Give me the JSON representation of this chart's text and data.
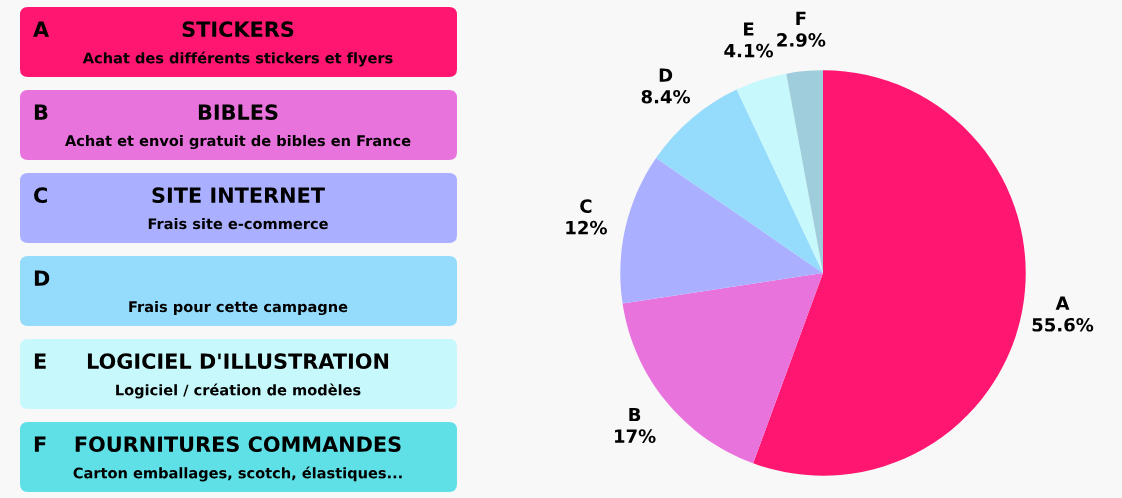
{
  "chart_data": [
    {
      "type": "other",
      "categories": [
        "A",
        "B",
        "C",
        "D",
        "E",
        "F"
      ],
      "annotations": [
        "STICKERS",
        "Achat des différents stickers et flyers",
        "BIBLES",
        "Achat et envoi gratuit de bibles en France",
        "SITE INTERNET",
        "Frais site e-commerce",
        null,
        "Frais pour cette campagne",
        "LOGICIEL D'ILLUSTRATION",
        "Logiciel / création de modèles",
        "FOURNITURES COMMANDES",
        "Carton emballages, scotch, élastiques..."
      ],
      "colors": [
        "#ff1670",
        "#e873dc",
        "#aab0ff",
        "#94dbfc",
        "#c7f8fb",
        "#5ee0e6"
      ]
    },
    {
      "type": "pie",
      "categories": [
        "A",
        "B",
        "C",
        "D",
        "E",
        "F"
      ],
      "values": [
        55.6,
        17,
        12,
        8.4,
        4.1,
        2.9
      ],
      "value_labels": [
        "55.6%",
        "17%",
        "12%",
        "8.4%",
        "4.1%",
        "2.9%"
      ],
      "colors": [
        "#ff1670",
        "#e873dc",
        "#aab0ff",
        "#94dbfc",
        "#c7f8fb",
        "#a0cddc"
      ]
    }
  ]
}
